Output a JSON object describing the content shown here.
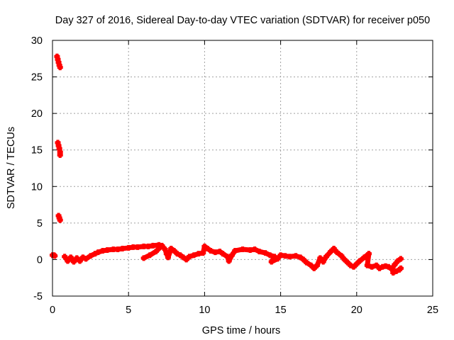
{
  "chart_data": {
    "type": "scatter",
    "title": "Day 327 of 2016, Sidereal Day-to-day VTEC variation (SDTVAR) for receiver p050",
    "xlabel": "GPS time / hours",
    "ylabel": "SDTVAR / TECUs",
    "xlim": [
      0,
      25
    ],
    "ylim": [
      -5,
      30
    ],
    "xticks": [
      "0",
      "5",
      "10",
      "15",
      "20",
      "25"
    ],
    "yticks": [
      "-5",
      "0",
      "5",
      "10",
      "15",
      "20",
      "25",
      "30"
    ],
    "grid": true,
    "marker_color": "#ff0000",
    "series": [
      {
        "name": "SDTVAR",
        "points": [
          [
            0.0,
            0.6
          ],
          [
            0.1,
            0.6
          ],
          [
            0.15,
            0.5
          ],
          [
            0.3,
            27.8
          ],
          [
            0.35,
            27.4
          ],
          [
            0.4,
            27.0
          ],
          [
            0.45,
            26.6
          ],
          [
            0.5,
            26.3
          ],
          [
            0.35,
            16.0
          ],
          [
            0.4,
            15.6
          ],
          [
            0.45,
            15.2
          ],
          [
            0.5,
            14.7
          ],
          [
            0.5,
            14.3
          ],
          [
            0.4,
            6.0
          ],
          [
            0.45,
            5.7
          ],
          [
            0.5,
            5.4
          ],
          [
            0.8,
            0.4
          ],
          [
            1.0,
            -0.2
          ],
          [
            1.2,
            0.3
          ],
          [
            1.4,
            -0.3
          ],
          [
            1.6,
            0.2
          ],
          [
            1.8,
            -0.2
          ],
          [
            2.0,
            0.3
          ],
          [
            2.2,
            0.1
          ],
          [
            2.5,
            0.5
          ],
          [
            2.8,
            0.8
          ],
          [
            3.0,
            1.0
          ],
          [
            3.3,
            1.2
          ],
          [
            3.6,
            1.3
          ],
          [
            4.0,
            1.4
          ],
          [
            4.3,
            1.4
          ],
          [
            4.6,
            1.5
          ],
          [
            5.0,
            1.6
          ],
          [
            5.3,
            1.7
          ],
          [
            5.6,
            1.7
          ],
          [
            6.0,
            1.8
          ],
          [
            6.3,
            1.8
          ],
          [
            6.6,
            1.9
          ],
          [
            7.0,
            2.0
          ],
          [
            6.0,
            0.2
          ],
          [
            6.4,
            0.6
          ],
          [
            6.8,
            1.1
          ],
          [
            7.2,
            1.9
          ],
          [
            7.4,
            1.4
          ],
          [
            7.5,
            0.8
          ],
          [
            7.6,
            0.3
          ],
          [
            7.8,
            1.5
          ],
          [
            8.0,
            1.2
          ],
          [
            8.2,
            0.8
          ],
          [
            8.4,
            0.6
          ],
          [
            8.6,
            0.3
          ],
          [
            8.8,
            0.0
          ],
          [
            8.9,
            0.2
          ],
          [
            9.0,
            0.4
          ],
          [
            9.3,
            0.6
          ],
          [
            9.6,
            0.8
          ],
          [
            9.9,
            0.9
          ],
          [
            10.0,
            1.8
          ],
          [
            10.2,
            1.5
          ],
          [
            10.4,
            1.2
          ],
          [
            10.7,
            1.0
          ],
          [
            11.0,
            1.1
          ],
          [
            11.2,
            0.8
          ],
          [
            11.5,
            0.4
          ],
          [
            11.6,
            -0.2
          ],
          [
            11.8,
            0.6
          ],
          [
            12.0,
            1.2
          ],
          [
            12.5,
            1.4
          ],
          [
            13.0,
            1.3
          ],
          [
            13.3,
            1.4
          ],
          [
            13.6,
            1.1
          ],
          [
            14.0,
            0.9
          ],
          [
            14.3,
            0.6
          ],
          [
            14.6,
            0.4
          ],
          [
            14.4,
            -0.3
          ],
          [
            14.8,
            0.1
          ],
          [
            15.0,
            0.6
          ],
          [
            15.3,
            0.5
          ],
          [
            15.6,
            0.4
          ],
          [
            16.0,
            0.5
          ],
          [
            16.3,
            0.3
          ],
          [
            16.5,
            0.0
          ],
          [
            16.7,
            -0.4
          ],
          [
            17.0,
            -0.8
          ],
          [
            17.2,
            -1.2
          ],
          [
            17.4,
            -0.8
          ],
          [
            17.6,
            0.2
          ],
          [
            17.8,
            -0.3
          ],
          [
            18.0,
            0.4
          ],
          [
            18.3,
            1.1
          ],
          [
            18.5,
            1.5
          ],
          [
            18.7,
            1.0
          ],
          [
            19.0,
            0.5
          ],
          [
            19.2,
            0.0
          ],
          [
            19.4,
            -0.4
          ],
          [
            19.6,
            -0.8
          ],
          [
            19.8,
            -1.0
          ],
          [
            20.0,
            -0.6
          ],
          [
            20.2,
            -0.2
          ],
          [
            20.5,
            0.3
          ],
          [
            20.8,
            0.8
          ],
          [
            20.7,
            -0.8
          ],
          [
            21.0,
            -1.0
          ],
          [
            21.3,
            -0.8
          ],
          [
            21.5,
            -1.2
          ],
          [
            21.7,
            -1.0
          ],
          [
            21.9,
            -0.9
          ],
          [
            22.1,
            -1.0
          ],
          [
            22.3,
            -1.3
          ],
          [
            22.5,
            -0.7
          ],
          [
            22.7,
            -0.2
          ],
          [
            22.9,
            0.1
          ],
          [
            22.4,
            -1.8
          ],
          [
            22.6,
            -1.6
          ],
          [
            22.8,
            -1.4
          ],
          [
            22.9,
            -1.2
          ]
        ]
      }
    ]
  }
}
